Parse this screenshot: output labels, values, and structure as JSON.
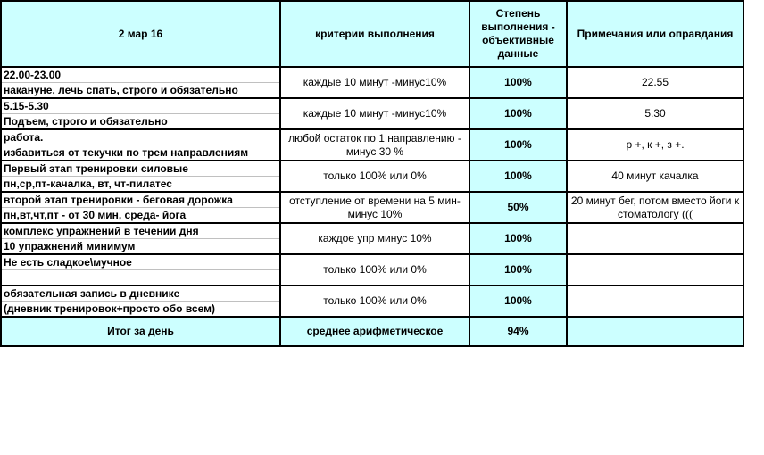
{
  "header": {
    "date": "2 мар 16",
    "criteria": "критерии выполнения",
    "completion": "Степень выполнения - объективные данные",
    "notes": "Примечания или оправдания"
  },
  "rows": [
    {
      "line1": "22.00-23.00",
      "line2": "накануне, лечь спать, строго и обязательно",
      "criteria": "каждые 10 минут -минус10%",
      "percent": "100%",
      "note": "22.55"
    },
    {
      "line1": "5.15-5.30",
      "line2": "Подъем, строго и обязательно",
      "criteria": "каждые 10 минут -минус10%",
      "percent": "100%",
      "note": "5.30"
    },
    {
      "line1": "работа.",
      "line2": "избавиться от текучки по трем направлениям",
      "criteria": "любой остаток по 1 направлению - минус 30 %",
      "percent": "100%",
      "note": "р +, к +, з +."
    },
    {
      "line1": "Первый этап тренировки силовые",
      "line2": "пн,ср,пт-качалка, вт, чт-пилатес",
      "criteria": "только 100% или 0%",
      "percent": "100%",
      "note": "40 минут качалка"
    },
    {
      "line1": "второй этап тренировки - беговая дорожка",
      "line2": "пн,вт,чт,пт - от 30 мин, среда- йога",
      "criteria": "отступление от времени на 5 мин- минус 10%",
      "percent": "50%",
      "note": "20 минут бег, потом вместо йоги к стоматологу ((("
    },
    {
      "line1": "комплекс упражнений в течении дня",
      "line2": "10 упражнений минимум",
      "criteria": "каждое упр минус 10%",
      "percent": "100%",
      "note": ""
    },
    {
      "line1": "Не есть сладкое\\мучное",
      "line2": "",
      "criteria": "только 100% или 0%",
      "percent": "100%",
      "note": ""
    },
    {
      "line1": "обязательная запись в дневнике",
      "line2": "(дневник тренировок+просто обо всем)",
      "criteria": "только 100% или 0%",
      "percent": "100%",
      "note": ""
    }
  ],
  "footer": {
    "label": "Итог за день",
    "criteria": "среднее арифметическое",
    "percent": "94%",
    "note": ""
  },
  "colors": {
    "highlight": "#ccffff",
    "border": "#000000"
  }
}
